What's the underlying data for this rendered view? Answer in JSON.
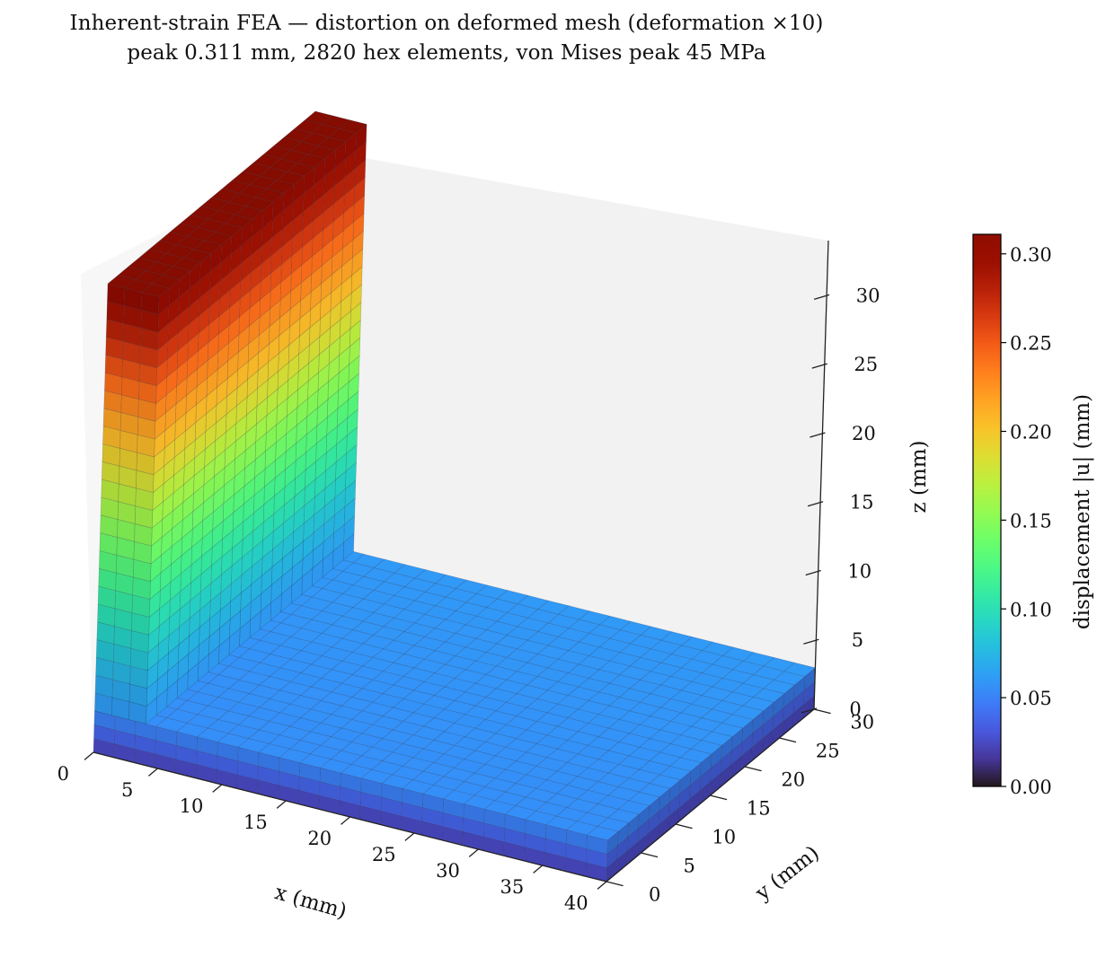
{
  "title": {
    "line1": "Inherent-strain FEA — distortion on deformed mesh (deformation ×10)",
    "line2": "peak 0.311 mm, 2820 hex elements, von Mises peak 45 MPa"
  },
  "chart_data": {
    "type": "surface3d",
    "title": "Inherent-strain FEA — distortion on deformed mesh (deformation ×10)",
    "subtitle": "peak 0.311 mm, 2820 hex elements, von Mises peak 45 MPa",
    "xlabel": "x (mm)",
    "ylabel": "y (mm)",
    "zlabel": "z (mm)",
    "xlim": [
      0,
      40
    ],
    "ylim": [
      0,
      30
    ],
    "zlim": [
      0,
      34
    ],
    "xticks": [
      0,
      5,
      10,
      15,
      20,
      25,
      30,
      35,
      40
    ],
    "yticks": [
      0,
      5,
      10,
      15,
      20,
      25,
      30
    ],
    "zticks": [
      0,
      5,
      10,
      15,
      20,
      25,
      30
    ],
    "colormap": "turbo",
    "colorbar": {
      "label": "displacement |u| (mm)",
      "min": 0.0,
      "max": 0.311,
      "ticks": [
        "0.00",
        "0.05",
        "0.10",
        "0.15",
        "0.20",
        "0.25",
        "0.30"
      ]
    },
    "mesh": {
      "elements": 2820,
      "deformation_scale": 10,
      "peak_displacement_mm": 0.311,
      "von_mises_peak_MPa": 45
    },
    "plate": {
      "x_range": [
        0,
        40
      ],
      "y_range": [
        0,
        30
      ],
      "thickness_mm": 3,
      "displacement_mm": 0.06
    },
    "wall": {
      "x_range": [
        0,
        4
      ],
      "y_range": [
        0,
        30
      ],
      "z_range": [
        0,
        34
      ],
      "base_displacement_mm": 0.06,
      "top_displacement_mm": 0.311
    }
  }
}
